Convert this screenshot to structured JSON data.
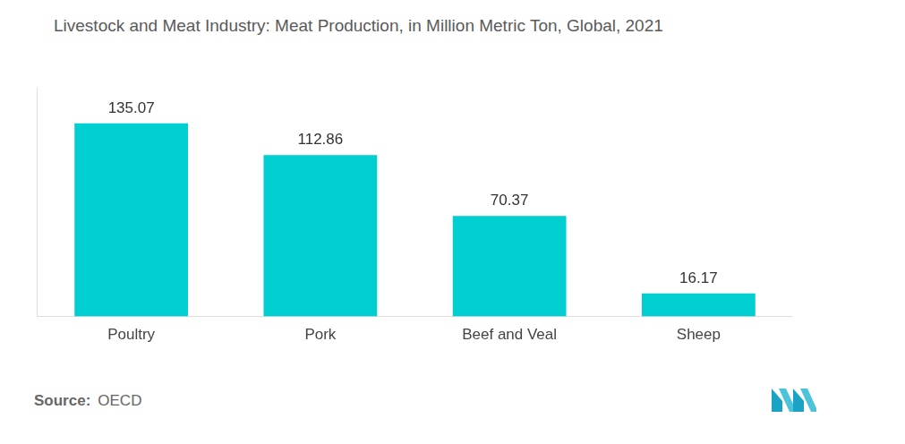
{
  "chart_data": {
    "type": "bar",
    "title": "Livestock and Meat Industry: Meat Production, in Million Metric Ton, Global, 2021",
    "categories": [
      "Poultry",
      "Pork",
      "Beef and Veal",
      "Sheep"
    ],
    "values": [
      135.07,
      112.86,
      70.37,
      16.17
    ],
    "color": "#00ced1",
    "ylim": [
      0,
      160
    ],
    "grid": false,
    "data_labels": true,
    "tick_labels": "x",
    "source_label": "Source:",
    "source": "OECD"
  }
}
